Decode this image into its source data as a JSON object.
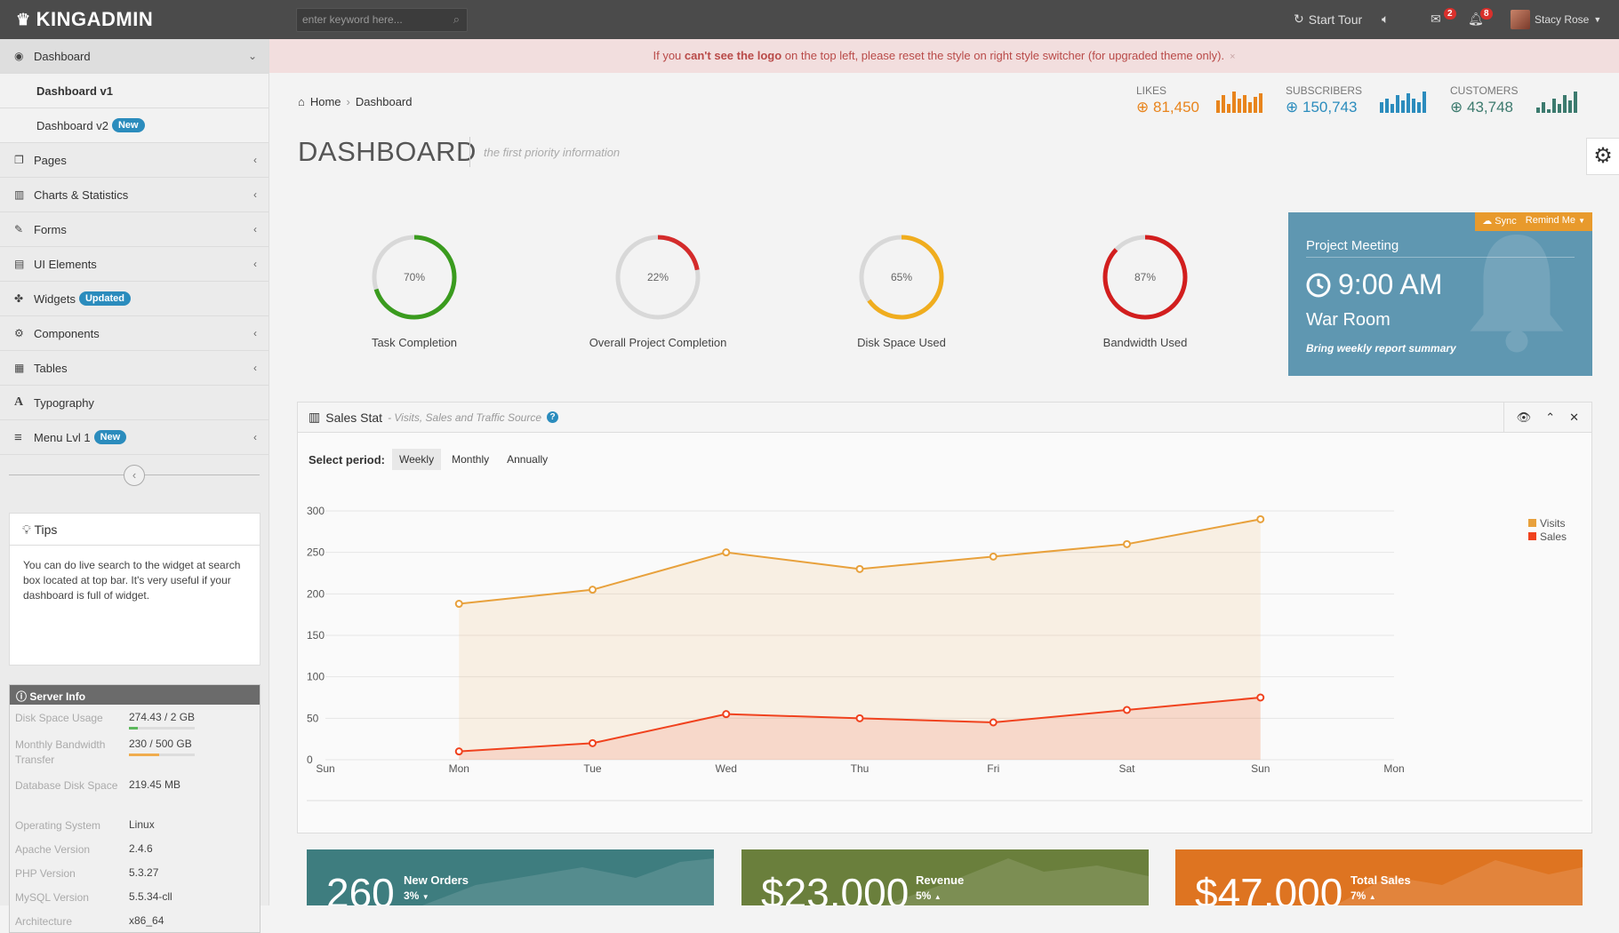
{
  "topbar": {
    "logo": "KINGADMIN",
    "search_placeholder": "enter keyword here...",
    "start_tour": "Start Tour",
    "mail_count": "2",
    "notif_count": "8",
    "user_name": "Stacy Rose"
  },
  "alert": {
    "pre": "If you ",
    "bold": "can't see the logo",
    "post": " on the top left, please reset the style on right style switcher (for upgraded theme only).",
    "close": "×"
  },
  "sidebar": {
    "items": [
      {
        "label": "Dashboard"
      },
      {
        "label": "Dashboard v1"
      },
      {
        "label": "Dashboard v2",
        "badge": "New"
      },
      {
        "label": "Pages"
      },
      {
        "label": "Charts & Statistics"
      },
      {
        "label": "Forms"
      },
      {
        "label": "UI Elements"
      },
      {
        "label": "Widgets",
        "badge": "Updated"
      },
      {
        "label": "Components"
      },
      {
        "label": "Tables"
      },
      {
        "label": "Typography"
      },
      {
        "label": "Menu Lvl 1",
        "badge": "New"
      }
    ],
    "tips": {
      "title": "Tips",
      "body": "You can do live search to the widget at search box located at top bar. It's very useful if your dashboard is full of widget."
    },
    "server": {
      "title": "Server Info",
      "rows": [
        {
          "key": "Disk Space Usage",
          "value": "274.43 / 2 GB",
          "progress": 0.14
        },
        {
          "key": "Monthly Bandwidth Transfer",
          "value": "230 / 500 GB",
          "progress": 0.46
        },
        {
          "key": "Database Disk Space",
          "value": "219.45 MB"
        },
        {
          "key": "Operating System",
          "value": "Linux"
        },
        {
          "key": "Apache Version",
          "value": "2.4.6"
        },
        {
          "key": "PHP Version",
          "value": "5.3.27"
        },
        {
          "key": "MySQL Version",
          "value": "5.5.34-cll"
        },
        {
          "key": "Architecture",
          "value": "x86_64"
        }
      ]
    }
  },
  "breadcrumb": {
    "home": "Home",
    "current": "Dashboard"
  },
  "stats": {
    "likes": {
      "label": "LIKES",
      "value": "81,450",
      "color": "#e8841c"
    },
    "subscribers": {
      "label": "SUBSCRIBERS",
      "value": "150,743",
      "color": "#2b8cbd"
    },
    "customers": {
      "label": "CUSTOMERS",
      "value": "43,748",
      "color": "#3c7a6e"
    }
  },
  "page": {
    "title": "DASHBOARD",
    "subtitle": "the first priority information"
  },
  "donuts": [
    {
      "value": 70,
      "text": "70%",
      "label": "Task Completion",
      "color": "#3a9b1e"
    },
    {
      "value": 22,
      "text": "22%",
      "label": "Overall Project Completion",
      "color": "#d42b2b"
    },
    {
      "value": 65,
      "text": "65%",
      "label": "Disk Space Used",
      "color": "#f0ad1e"
    },
    {
      "value": 87,
      "text": "87%",
      "label": "Bandwidth Used",
      "color": "#d21e1e"
    }
  ],
  "meeting": {
    "sync": "Sync",
    "remind": "Remind Me",
    "title": "Project Meeting",
    "time": "9:00 AM",
    "room": "War Room",
    "note": "Bring weekly report summary"
  },
  "sales": {
    "title": "Sales Stat",
    "subtitle": "- Visits, Sales and Traffic Source",
    "period_label": "Select period:",
    "periods": [
      "Weekly",
      "Monthly",
      "Annually"
    ],
    "selected_period": "Weekly"
  },
  "chart_data": {
    "type": "area",
    "categories": [
      "Mon",
      "Tue",
      "Wed",
      "Thu",
      "Fri",
      "Sat",
      "Sun"
    ],
    "x_ticks": [
      "Sun",
      "Mon",
      "Tue",
      "Wed",
      "Thu",
      "Fri",
      "Sat",
      "Sun",
      "Mon"
    ],
    "y_ticks": [
      0,
      50,
      100,
      150,
      200,
      250,
      300
    ],
    "ylim": [
      0,
      300
    ],
    "grid": true,
    "legend_position": "top-right",
    "series": [
      {
        "name": "Visits",
        "values": [
          188,
          205,
          250,
          230,
          245,
          260,
          290
        ],
        "color": "#e8a13c"
      },
      {
        "name": "Sales",
        "values": [
          10,
          20,
          55,
          50,
          45,
          60,
          75
        ],
        "color": "#f0421e"
      }
    ]
  },
  "tiles": [
    {
      "value": "260",
      "caption": "New Orders",
      "pct": "3%",
      "trend": "down",
      "color": "#3e7d7f"
    },
    {
      "value": "$23,000",
      "caption": "Revenue",
      "pct": "5%",
      "trend": "up",
      "color": "#6a7f3c"
    },
    {
      "value": "$47,000",
      "caption": "Total Sales",
      "pct": "7%",
      "trend": "up",
      "color": "#de7421"
    }
  ]
}
